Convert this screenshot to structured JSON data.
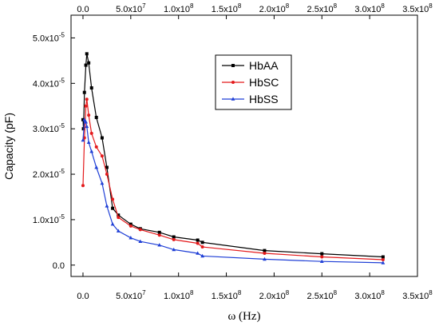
{
  "chart_data": {
    "type": "line",
    "xlabel": "ω (Hz)",
    "ylabel": "Capacity (pF)",
    "xlim": [
      -12500000,
      350000000
    ],
    "ylim": [
      -2.5e-06,
      5.5e-05
    ],
    "x_ticks": [
      {
        "value": 0,
        "label": "0.0"
      },
      {
        "value": 50000000,
        "label": "5.0x10",
        "exp": "7"
      },
      {
        "value": 100000000,
        "label": "1.0x10",
        "exp": "8"
      },
      {
        "value": 150000000,
        "label": "1.5x10",
        "exp": "8"
      },
      {
        "value": 200000000,
        "label": "2.0x10",
        "exp": "8"
      },
      {
        "value": 250000000,
        "label": "2.5x10",
        "exp": "8"
      },
      {
        "value": 300000000,
        "label": "3.0x10",
        "exp": "8"
      },
      {
        "value": 350000000,
        "label": "3.5x10",
        "exp": "8"
      }
    ],
    "y_ticks": [
      {
        "value": 0,
        "label": "0.0",
        "exp": ""
      },
      {
        "value": 1e-05,
        "label": "1.0x10",
        "exp": "-5"
      },
      {
        "value": 2e-05,
        "label": "2.0x10",
        "exp": "-5"
      },
      {
        "value": 3e-05,
        "label": "3.0x10",
        "exp": "-5"
      },
      {
        "value": 4e-05,
        "label": "4.0x10",
        "exp": "-5"
      },
      {
        "value": 5e-05,
        "label": "5.0x10",
        "exp": "-5"
      }
    ],
    "legend_position": "top-right",
    "grid": false,
    "series": [
      {
        "name": "HbAA",
        "color": "#000000",
        "marker": "square",
        "x": [
          0,
          500000,
          1500000,
          3000000,
          4000000,
          6000000,
          9000000,
          14000000,
          20000000,
          25000000,
          31000000,
          37000000,
          50000000,
          60000000,
          80000000,
          95000000,
          120000000,
          125000000,
          190000000,
          250000000,
          314000000
        ],
        "y": [
          3.2e-05,
          3e-05,
          3.8e-05,
          4.4e-05,
          4.65e-05,
          4.45e-05,
          3.9e-05,
          3.25e-05,
          2.8e-05,
          2.15e-05,
          1.25e-05,
          1.1e-05,
          9e-06,
          8e-06,
          7.2e-06,
          6.2e-06,
          5.5e-06,
          5e-06,
          3.2e-06,
          2.5e-06,
          1.8e-06
        ]
      },
      {
        "name": "HbSC",
        "color": "#e41a1c",
        "marker": "circle",
        "x": [
          0,
          1500000,
          3000000,
          4000000,
          6000000,
          9000000,
          14000000,
          20000000,
          25000000,
          31000000,
          37000000,
          50000000,
          60000000,
          80000000,
          95000000,
          120000000,
          125000000,
          190000000,
          250000000,
          314000000
        ],
        "y": [
          1.75e-05,
          2.8e-05,
          3.5e-05,
          3.65e-05,
          3.3e-05,
          2.9e-05,
          2.6e-05,
          2.4e-05,
          2e-05,
          1.45e-05,
          1.05e-05,
          8.6e-06,
          7.8e-06,
          6.6e-06,
          5.6e-06,
          4.8e-06,
          4e-06,
          2.6e-06,
          1.8e-06,
          1.2e-06
        ]
      },
      {
        "name": "HbSS",
        "color": "#1f3fd6",
        "marker": "triangle",
        "x": [
          0,
          1500000,
          3000000,
          4000000,
          6000000,
          9000000,
          14000000,
          20000000,
          25000000,
          31000000,
          37000000,
          50000000,
          60000000,
          80000000,
          95000000,
          120000000,
          125000000,
          190000000,
          250000000,
          314000000
        ],
        "y": [
          2.75e-05,
          3.2e-05,
          3.15e-05,
          3.05e-05,
          2.7e-05,
          2.5e-05,
          2.15e-05,
          1.8e-05,
          1.3e-05,
          9e-06,
          7.5e-06,
          6e-06,
          5.2e-06,
          4.4e-06,
          3.4e-06,
          2.6e-06,
          2e-06,
          1.3e-06,
          8e-07,
          5e-07
        ]
      }
    ]
  }
}
